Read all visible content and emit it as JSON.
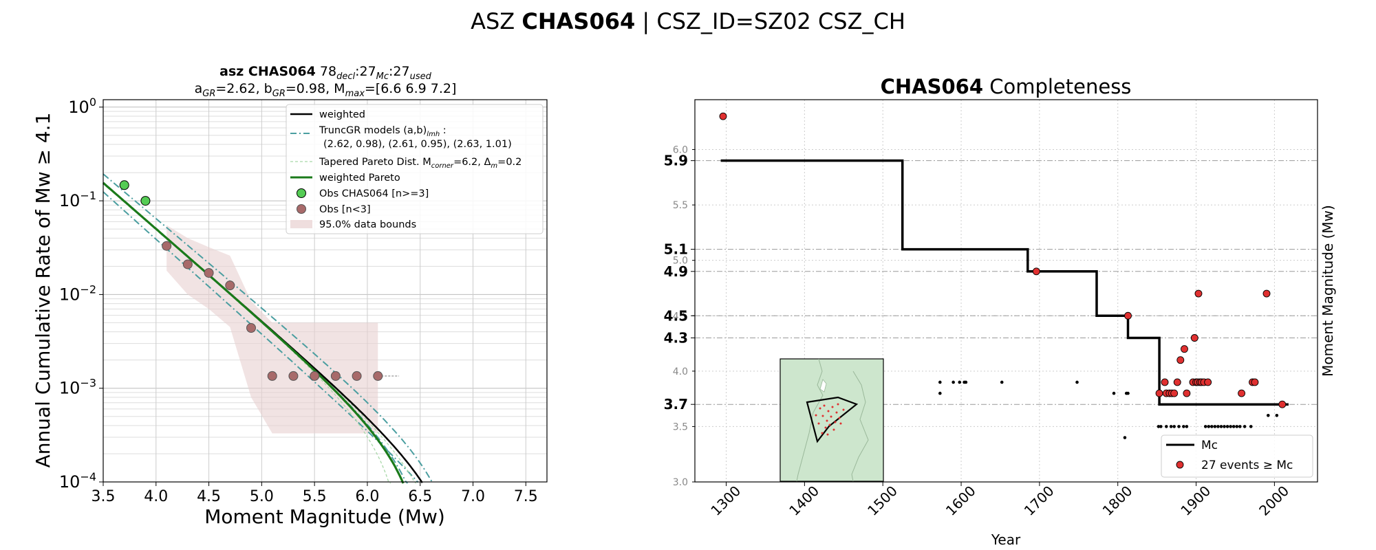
{
  "suptitle": {
    "prefix": "ASZ ",
    "name": "CHAS064",
    "suffix": " | CSZ_ID=SZ02 CSZ_CH"
  },
  "left": {
    "title1": {
      "bold": "asz CHAS064",
      "n1": "78",
      "s1": "decl",
      "n2": ":27",
      "s2": "Mc",
      "n3": ":27",
      "s3": "used"
    },
    "title2": {
      "a_pre": "a",
      "a_sub": "GR",
      "a_val": "=2.62,  b",
      "b_sub": "GR",
      "b_val": "=0.98, M",
      "m_sub": "max",
      "m_val": "=[6.6 6.9 7.2]"
    },
    "xlabel": "Moment Magnitude (Mw)",
    "ylabel": "Annual Cumulative Rate of Mw  ≥  4.1",
    "xticks": [
      "3.5",
      "4.0",
      "4.5",
      "5.0",
      "5.5",
      "6.0",
      "6.5",
      "7.0",
      "7.5"
    ],
    "legend": {
      "weighted": "weighted",
      "truncgr_a": "TruncGR models (a,b)",
      "truncgr_sub": "lmh",
      "truncgr_b": " :",
      "truncgr_vals": "(2.62, 0.98), (2.61, 0.95), (2.63, 1.01)",
      "tapered_a": "Tapered Pareto Dist. M",
      "tapered_sub1": "corner",
      "tapered_b": "=6.2, Δ",
      "tapered_sub2": "m",
      "tapered_c": "=0.2",
      "wpareto": "weighted Pareto",
      "obs_main": "Obs CHAS064 [n>=3]",
      "obs_low": "Obs [n<3]",
      "bounds": "95.0% data bounds"
    }
  },
  "right": {
    "title_bold": "CHAS064",
    "title_rest": " Completeness",
    "xlabel": "Year",
    "ylabel": "Moment Magnitude (Mw)",
    "xticks": [
      "1300",
      "1400",
      "1500",
      "1600",
      "1700",
      "1800",
      "1900",
      "2000"
    ],
    "minor_yticks": [
      "3.0",
      "3.5",
      "4.0",
      "4.5",
      "5.0",
      "5.5",
      "6.0"
    ],
    "mc_labels": [
      "5.9",
      "5.1",
      "4.9",
      "4.5",
      "4.3",
      "3.7"
    ],
    "legend": {
      "mc": "Mc",
      "events": "27 events  ≥  Mc"
    }
  },
  "colors": {
    "green_line": "#1a7a1a",
    "teal_dashdot": "#4a9ea0",
    "obs_main": "#55cc55",
    "obs_low": "#a86a6a",
    "bounds_fill": "#e8d0d0",
    "event_red": "#e03030",
    "inset_land": "#cde6cd"
  },
  "chart_data": [
    {
      "type": "line",
      "title": "asz CHAS064 78decl:27Mc:27used / aGR=2.62, bGR=0.98, Mmax=[6.6 6.9 7.2]",
      "xlabel": "Moment Magnitude (Mw)",
      "ylabel": "Annual Cumulative Rate of Mw ≥ 4.1",
      "xlim": [
        3.5,
        7.7
      ],
      "ylim": [
        0.0001,
        1.2
      ],
      "yscale": "log",
      "grid": true,
      "legend_position": "top-right",
      "models": {
        "truncgr": [
          {
            "a": 2.62,
            "b": 0.98,
            "mmax": 6.6
          },
          {
            "a": 2.61,
            "b": 0.95,
            "mmax": 6.9
          },
          {
            "a": 2.63,
            "b": 1.01,
            "mmax": 7.2
          }
        ],
        "tapered_pareto": {
          "mcorner": 6.2,
          "dm": 0.2
        }
      },
      "series": [
        {
          "name": "Obs CHAS064 [n>=3]",
          "x": [
            3.7,
            3.9
          ],
          "y": [
            0.147,
            0.1
          ]
        },
        {
          "name": "Obs [n<3]",
          "x": [
            4.1,
            4.3,
            4.5,
            4.7,
            4.9,
            5.1,
            5.3,
            5.5,
            5.7,
            5.9,
            6.1
          ],
          "y": [
            0.033,
            0.021,
            0.017,
            0.0125,
            0.0044,
            0.00135,
            0.00135,
            0.00135,
            0.00135,
            0.00135,
            0.00135
          ]
        }
      ],
      "bounds_95": {
        "x": [
          4.1,
          4.3,
          4.5,
          4.7,
          4.9,
          5.1,
          5.3,
          5.5,
          5.7,
          5.9,
          6.1
        ],
        "lower": [
          0.018,
          0.01,
          0.007,
          0.0045,
          0.0008,
          0.00033,
          0.00033,
          0.00033,
          0.00033,
          0.00033,
          0.00033
        ],
        "upper": [
          0.055,
          0.04,
          0.032,
          0.026,
          0.0085,
          0.005,
          0.005,
          0.005,
          0.005,
          0.005,
          0.005
        ]
      }
    },
    {
      "type": "scatter",
      "title": "CHAS064 Completeness",
      "xlabel": "Year",
      "ylabel": "Moment Magnitude (Mw)",
      "xlim": [
        1260,
        2055
      ],
      "ylim": [
        3.0,
        6.45
      ],
      "grid": true,
      "legend_position": "bottom-right",
      "mc_steps": [
        {
          "from": 1293,
          "to": 1525,
          "mc": 5.9
        },
        {
          "from": 1525,
          "to": 1685,
          "mc": 5.1
        },
        {
          "from": 1685,
          "to": 1773,
          "mc": 4.9
        },
        {
          "from": 1773,
          "to": 1813,
          "mc": 4.5
        },
        {
          "from": 1813,
          "to": 1853,
          "mc": 4.3
        },
        {
          "from": 1853,
          "to": 2018,
          "mc": 3.7
        }
      ],
      "events_ge_mc": {
        "name": "27 events ≥ Mc",
        "year": [
          1296,
          1696,
          1813,
          1853,
          1860,
          1862,
          1866,
          1869,
          1872,
          1876,
          1880,
          1885,
          1888,
          1896,
          1898,
          1900,
          1902,
          1903,
          1905,
          1907,
          1910,
          1915,
          1958,
          1972,
          1975,
          1990,
          2010
        ],
        "mw": [
          6.3,
          4.9,
          4.5,
          3.8,
          3.9,
          3.8,
          3.8,
          3.8,
          3.8,
          3.9,
          4.1,
          4.2,
          3.8,
          3.9,
          4.3,
          3.9,
          3.9,
          4.7,
          3.9,
          3.9,
          3.9,
          3.9,
          3.8,
          3.9,
          3.9,
          4.7,
          3.7
        ]
      },
      "events_below_mc": {
        "year": [
          1573,
          1573,
          1590,
          1598,
          1604,
          1606,
          1652,
          1748,
          1795,
          1809,
          1811,
          1813,
          1852,
          1855,
          1862,
          1868,
          1872,
          1878,
          1884,
          1888,
          1912,
          1916,
          1920,
          1924,
          1928,
          1932,
          1936,
          1940,
          1944,
          1948,
          1952,
          1956,
          1962,
          1970,
          1992,
          2003
        ],
        "mw": [
          3.9,
          3.8,
          3.9,
          3.9,
          3.9,
          3.9,
          3.9,
          3.9,
          3.8,
          3.4,
          3.8,
          3.8,
          3.5,
          3.5,
          3.5,
          3.5,
          3.5,
          3.5,
          3.5,
          3.5,
          3.5,
          3.5,
          3.5,
          3.5,
          3.5,
          3.5,
          3.5,
          3.5,
          3.5,
          3.5,
          3.5,
          3.5,
          3.5,
          3.5,
          3.6,
          3.6
        ]
      }
    }
  ]
}
